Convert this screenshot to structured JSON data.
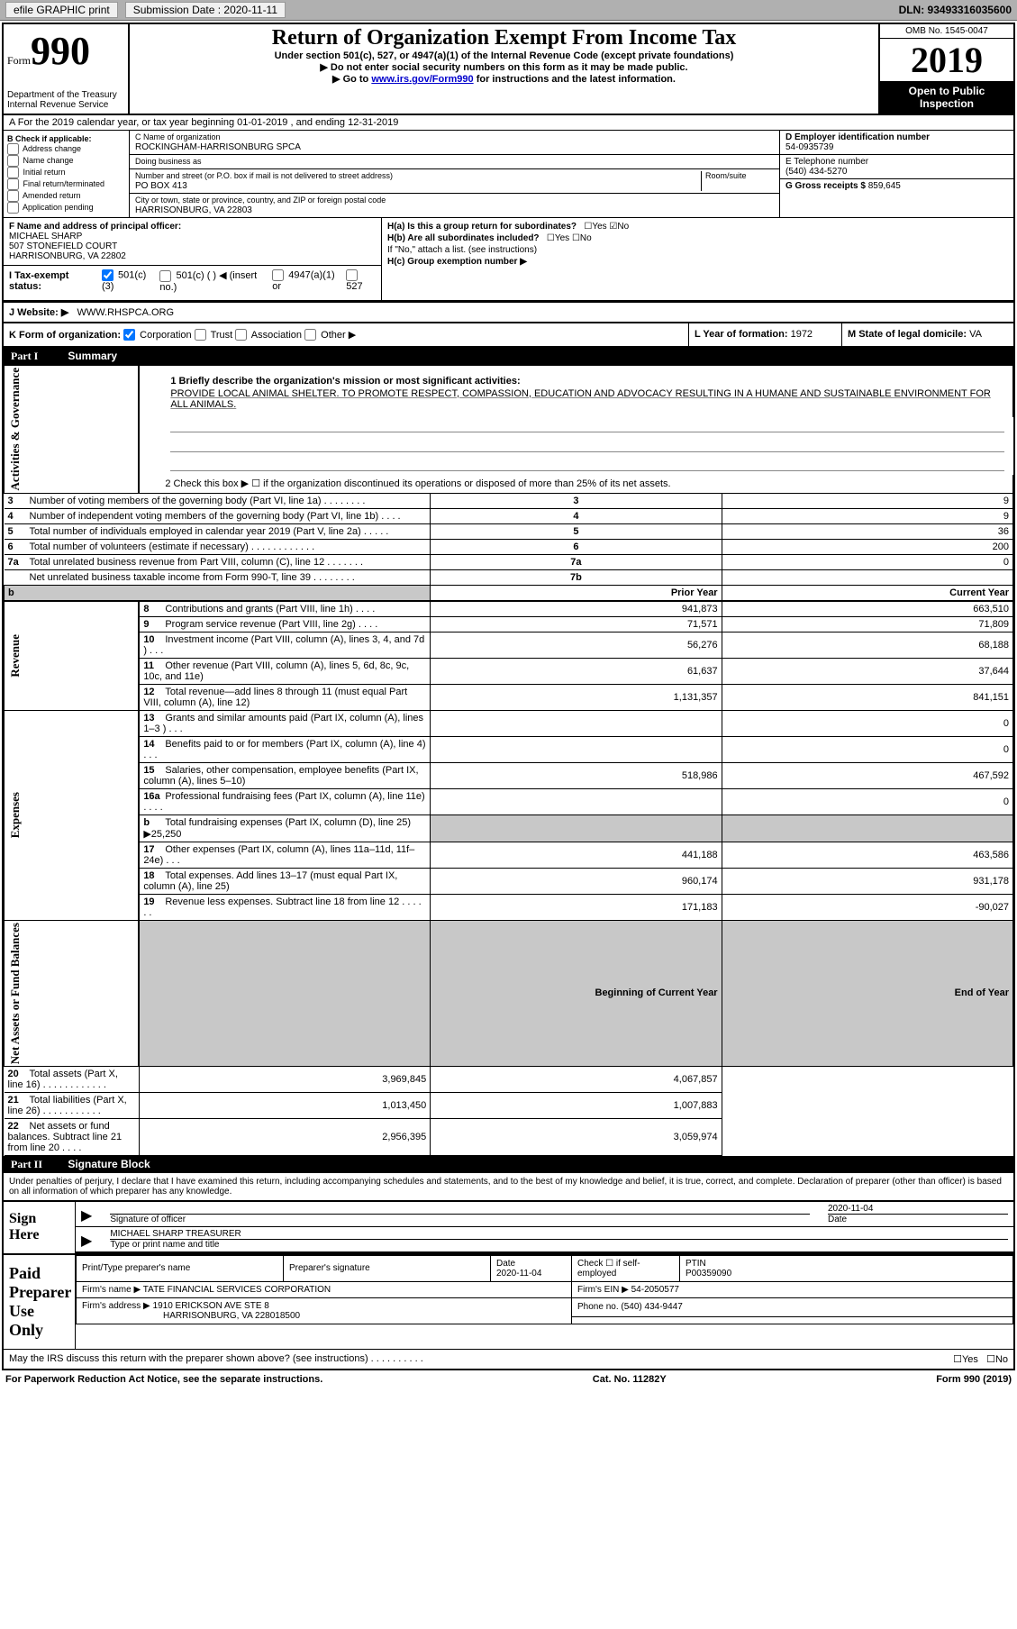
{
  "topbar": {
    "efile": "efile GRAPHIC print",
    "submission_lbl": "Submission Date : 2020-11-11",
    "dln": "DLN: 93493316035600"
  },
  "header": {
    "form_lbl": "Form",
    "form_num": "990",
    "dept": "Department of the Treasury\nInternal Revenue Service",
    "title": "Return of Organization Exempt From Income Tax",
    "subtitle": "Under section 501(c), 527, or 4947(a)(1) of the Internal Revenue Code (except private foundations)",
    "note1": "▶ Do not enter social security numbers on this form as it may be made public.",
    "note2_pre": "▶ Go to ",
    "note2_link": "www.irs.gov/Form990",
    "note2_post": " for instructions and the latest information.",
    "omb": "OMB No. 1545-0047",
    "year": "2019",
    "open": "Open to Public Inspection"
  },
  "period": "A For the 2019 calendar year, or tax year beginning 01-01-2019   , and ending 12-31-2019",
  "sectionB": {
    "label": "B Check if applicable:",
    "items": [
      "Address change",
      "Name change",
      "Initial return",
      "Final return/terminated",
      "Amended return",
      "Application pending"
    ]
  },
  "sectionC": {
    "name_lbl": "C Name of organization",
    "name": "ROCKINGHAM-HARRISONBURG SPCA",
    "dba_lbl": "Doing business as",
    "addr_lbl": "Number and street (or P.O. box if mail is not delivered to street address)",
    "room_lbl": "Room/suite",
    "addr": "PO BOX 413",
    "city_lbl": "City or town, state or province, country, and ZIP or foreign postal code",
    "city": "HARRISONBURG, VA  22803"
  },
  "sectionD": {
    "lbl": "D Employer identification number",
    "val": "54-0935739"
  },
  "sectionE": {
    "lbl": "E Telephone number",
    "val": "(540) 434-5270"
  },
  "sectionG": {
    "lbl": "G Gross receipts $",
    "val": "859,645"
  },
  "sectionF": {
    "lbl": "F Name and address of principal officer:",
    "name": "MICHAEL SHARP",
    "addr1": "507 STONEFIELD COURT",
    "addr2": "HARRISONBURG, VA  22802"
  },
  "sectionH": {
    "ha": "H(a)  Is this a group return for subordinates?",
    "hb": "H(b)  Are all subordinates included?",
    "hb_note": "If \"No,\" attach a list. (see instructions)",
    "hc": "H(c)  Group exemption number ▶"
  },
  "sectionI": {
    "lbl": "I   Tax-exempt status:",
    "c3": "501(c)(3)",
    "cblank": "501(c) (  ) ◀ (insert no.)",
    "a1": "4947(a)(1) or",
    "s527": "527"
  },
  "sectionJ": {
    "lbl": "J   Website: ▶",
    "val": "WWW.RHSPCA.ORG"
  },
  "sectionK": {
    "lbl": "K Form of organization:",
    "corp": "Corporation",
    "trust": "Trust",
    "assoc": "Association",
    "other": "Other ▶"
  },
  "sectionL": {
    "lbl": "L Year of formation:",
    "val": "1972"
  },
  "sectionM": {
    "lbl": "M State of legal domicile:",
    "val": "VA"
  },
  "part1": {
    "hdr": "Summary",
    "q1_lbl": "1   Briefly describe the organization's mission or most significant activities:",
    "q1_val": "PROVIDE LOCAL ANIMAL SHELTER. TO PROMOTE RESPECT, COMPASSION, EDUCATION AND ADVOCACY RESULTING IN A HUMANE AND SUSTAINABLE ENVIRONMENT FOR ALL ANIMALS.",
    "q2": "2   Check this box ▶ ☐  if the organization discontinued its operations or disposed of more than 25% of its net assets.",
    "rows": [
      {
        "n": "3",
        "d": "Number of voting members of the governing body (Part VI, line 1a)  .   .   .   .   .   .   .   .",
        "b": "3",
        "v": "9"
      },
      {
        "n": "4",
        "d": "Number of independent voting members of the governing body (Part VI, line 1b)  .   .   .   .",
        "b": "4",
        "v": "9"
      },
      {
        "n": "5",
        "d": "Total number of individuals employed in calendar year 2019 (Part V, line 2a)  .   .   .   .   .",
        "b": "5",
        "v": "36"
      },
      {
        "n": "6",
        "d": "Total number of volunteers (estimate if necessary)   .   .   .   .   .   .   .   .   .   .   .   .",
        "b": "6",
        "v": "200"
      },
      {
        "n": "7a",
        "d": "Total unrelated business revenue from Part VIII, column (C), line 12  .   .   .   .   .   .   .",
        "b": "7a",
        "v": "0"
      },
      {
        "n": "",
        "d": "Net unrelated business taxable income from Form 990-T, line 39  .   .   .   .   .   .   .   .",
        "b": "7b",
        "v": ""
      }
    ],
    "col_prior": "Prior Year",
    "col_current": "Current Year",
    "revenue_side": "Revenue",
    "governance_side": "Activities & Governance",
    "expenses_side": "Expenses",
    "net_side": "Net Assets or Fund Balances",
    "rev_rows": [
      {
        "n": "8",
        "d": "Contributions and grants (Part VIII, line 1h)   .   .   .   .",
        "p": "941,873",
        "c": "663,510"
      },
      {
        "n": "9",
        "d": "Program service revenue (Part VIII, line 2g)   .   .   .   .",
        "p": "71,571",
        "c": "71,809"
      },
      {
        "n": "10",
        "d": "Investment income (Part VIII, column (A), lines 3, 4, and 7d )   .   .   .",
        "p": "56,276",
        "c": "68,188"
      },
      {
        "n": "11",
        "d": "Other revenue (Part VIII, column (A), lines 5, 6d, 8c, 9c, 10c, and 11e)",
        "p": "61,637",
        "c": "37,644"
      },
      {
        "n": "12",
        "d": "Total revenue—add lines 8 through 11 (must equal Part VIII, column (A), line 12)",
        "p": "1,131,357",
        "c": "841,151"
      }
    ],
    "exp_rows": [
      {
        "n": "13",
        "d": "Grants and similar amounts paid (Part IX, column (A), lines 1–3 )  .   .   .",
        "p": "",
        "c": "0"
      },
      {
        "n": "14",
        "d": "Benefits paid to or for members (Part IX, column (A), line 4)  .   .   .",
        "p": "",
        "c": "0"
      },
      {
        "n": "15",
        "d": "Salaries, other compensation, employee benefits (Part IX, column (A), lines 5–10)",
        "p": "518,986",
        "c": "467,592"
      },
      {
        "n": "16a",
        "d": "Professional fundraising fees (Part IX, column (A), line 11e)  .   .   .   .",
        "p": "",
        "c": "0"
      },
      {
        "n": "b",
        "d": "Total fundraising expenses (Part IX, column (D), line 25) ▶25,250",
        "shade": true
      },
      {
        "n": "17",
        "d": "Other expenses (Part IX, column (A), lines 11a–11d, 11f–24e)  .   .   .",
        "p": "441,188",
        "c": "463,586"
      },
      {
        "n": "18",
        "d": "Total expenses. Add lines 13–17 (must equal Part IX, column (A), line 25)",
        "p": "960,174",
        "c": "931,178"
      },
      {
        "n": "19",
        "d": "Revenue less expenses. Subtract line 18 from line 12  .   .   .   .   .   .",
        "p": "171,183",
        "c": "-90,027"
      }
    ],
    "col_boy": "Beginning of Current Year",
    "col_eoy": "End of Year",
    "net_rows": [
      {
        "n": "20",
        "d": "Total assets (Part X, line 16)  .   .   .   .   .   .   .   .   .   .   .   .",
        "p": "3,969,845",
        "c": "4,067,857"
      },
      {
        "n": "21",
        "d": "Total liabilities (Part X, line 26)  .   .   .   .   .   .   .   .   .   .   .",
        "p": "1,013,450",
        "c": "1,007,883"
      },
      {
        "n": "22",
        "d": "Net assets or fund balances. Subtract line 21 from line 20  .   .   .   .",
        "p": "2,956,395",
        "c": "3,059,974"
      }
    ]
  },
  "part2": {
    "hdr": "Signature Block",
    "decl": "Under penalties of perjury, I declare that I have examined this return, including accompanying schedules and statements, and to the best of my knowledge and belief, it is true, correct, and complete. Declaration of preparer (other than officer) is based on all information of which preparer has any knowledge.",
    "sign_here": "Sign Here",
    "sig_of_officer": "Signature of officer",
    "date_lbl": "Date",
    "date": "2020-11-04",
    "officer": "MICHAEL SHARP TREASURER",
    "type_lbl": "Type or print name and title",
    "paid": "Paid Preparer Use Only",
    "prep_name_lbl": "Print/Type preparer's name",
    "prep_sig_lbl": "Preparer's signature",
    "prep_date": "2020-11-04",
    "check_self": "Check ☐ if self-employed",
    "ptin_lbl": "PTIN",
    "ptin": "P00359090",
    "firm_lbl": "Firm's name      ▶",
    "firm": "TATE FINANCIAL SERVICES CORPORATION",
    "ein_lbl": "Firm's EIN ▶",
    "ein": "54-2050577",
    "addr_lbl": "Firm's address ▶",
    "addr1": "1910 ERICKSON AVE STE 8",
    "addr2": "HARRISONBURG, VA  228018500",
    "phone_lbl": "Phone no.",
    "phone": "(540) 434-9447",
    "discuss": "May the IRS discuss this return with the preparer shown above? (see instructions)   .   .   .   .   .   .   .   .   .   .",
    "yes": "Yes",
    "no": "No"
  },
  "footer": {
    "pra": "For Paperwork Reduction Act Notice, see the separate instructions.",
    "cat": "Cat. No. 11282Y",
    "form": "Form 990 (2019)"
  }
}
